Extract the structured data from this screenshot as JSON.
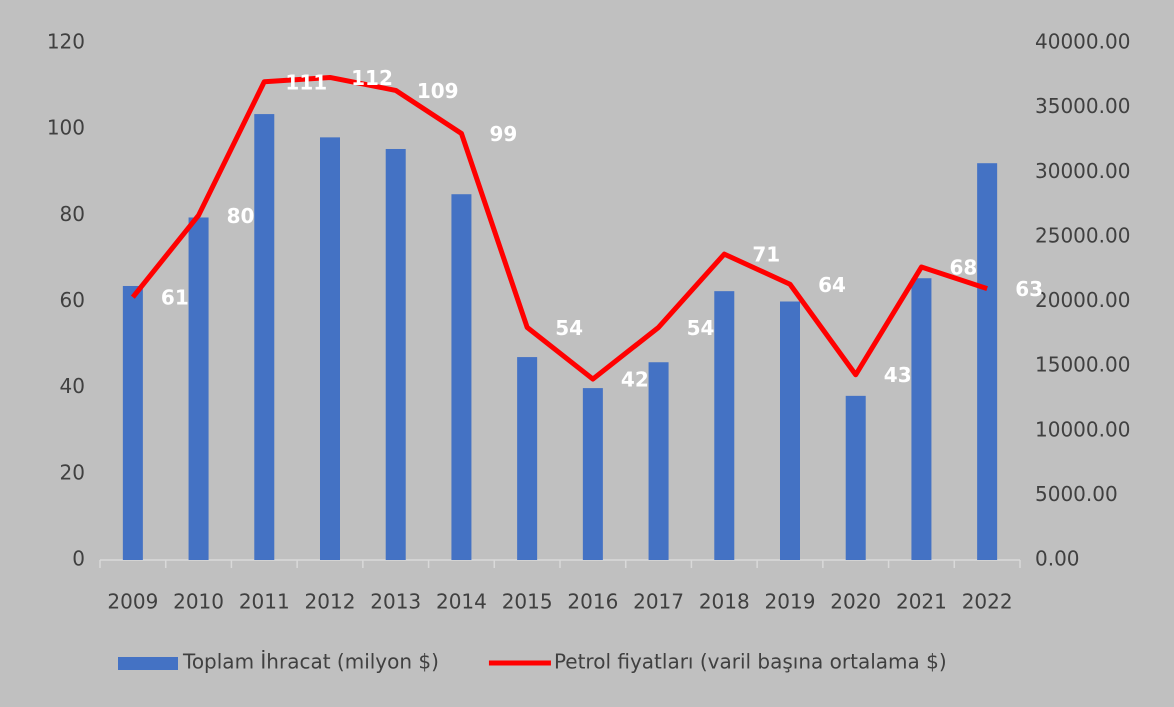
{
  "chart_data": {
    "type": "bar",
    "categories": [
      "2009",
      "2010",
      "2011",
      "2012",
      "2013",
      "2014",
      "2015",
      "2016",
      "2017",
      "2018",
      "2019",
      "2020",
      "2021",
      "2022"
    ],
    "series": [
      {
        "name": "Toplam İhracat (milyon $)",
        "type": "bar",
        "color": "#4472c4",
        "axis": "y2",
        "values": [
          21200,
          26500,
          34500,
          32700,
          31800,
          28300,
          15700,
          13300,
          15300,
          20800,
          20000,
          12700,
          21800,
          30700
        ]
      },
      {
        "name": "Petrol fiyatları (varil başına ortalama $)",
        "type": "line",
        "color": "#ff0000",
        "values": [
          61,
          80,
          111,
          112,
          109,
          99,
          54,
          42,
          54,
          71,
          64,
          43,
          68,
          63
        ]
      }
    ],
    "ylim": [
      0,
      120
    ],
    "yticks": [
      0,
      20,
      40,
      60,
      80,
      100,
      120
    ],
    "y2lim": [
      0,
      40000
    ],
    "y2ticks": [
      {
        "value": 0,
        "label": "0.00"
      },
      {
        "value": 5000,
        "label": "5000.00"
      },
      {
        "value": 10000,
        "label": "10000.00"
      },
      {
        "value": 15000,
        "label": "15000.00"
      },
      {
        "value": 20000,
        "label": "20000.00"
      },
      {
        "value": 25000,
        "label": "25000.00"
      },
      {
        "value": 30000,
        "label": "30000.00"
      },
      {
        "value": 35000,
        "label": "35000.00"
      },
      {
        "value": 40000,
        "label": "40000.00"
      }
    ],
    "grid": false,
    "legend": "bottom"
  }
}
